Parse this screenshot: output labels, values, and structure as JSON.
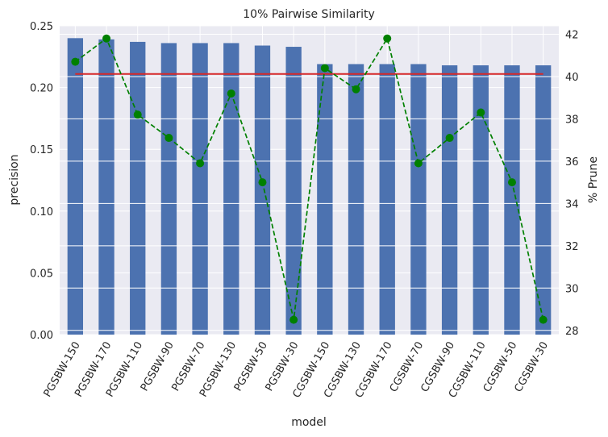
{
  "chart_data": {
    "type": "bar",
    "title": "10% Pairwise Similarity",
    "xlabel": "model",
    "ylabel": "precision",
    "y2label": "% Prune",
    "categories": [
      "PGSBW-150",
      "PGSBW-170",
      "PGSBW-110",
      "PGSBW-90",
      "PGSBW-70",
      "PGSBW-130",
      "PGSBW-50",
      "PGSBW-30",
      "CGSBW-150",
      "CGSBW-130",
      "CGSBW-170",
      "CGSBW-70",
      "CGSBW-90",
      "CGSBW-110",
      "CGSBW-50",
      "CGSBW-30"
    ],
    "ylim": [
      0,
      0.25
    ],
    "yticks": [
      "0.00",
      "0.05",
      "0.10",
      "0.15",
      "0.20",
      "0.25"
    ],
    "y2lim": [
      27.8,
      42.4
    ],
    "y2ticks": [
      "28",
      "30",
      "32",
      "34",
      "36",
      "38",
      "40",
      "42"
    ],
    "grid": true,
    "series": [
      {
        "role": "bars",
        "axis": "left",
        "color": "#4c72b0",
        "values": [
          0.24,
          0.239,
          0.237,
          0.236,
          0.236,
          0.236,
          0.234,
          0.233,
          0.219,
          0.219,
          0.219,
          0.219,
          0.218,
          0.218,
          0.218,
          0.218
        ]
      },
      {
        "role": "reference-line",
        "axis": "left",
        "color": "#d62728",
        "value": 0.211
      },
      {
        "role": "dashed-line-markers",
        "axis": "right",
        "color": "#008000",
        "values": [
          40.7,
          41.8,
          38.2,
          37.1,
          35.9,
          39.2,
          35.0,
          28.5,
          40.4,
          39.4,
          41.8,
          35.9,
          37.1,
          38.3,
          35.0,
          28.5
        ]
      }
    ]
  }
}
